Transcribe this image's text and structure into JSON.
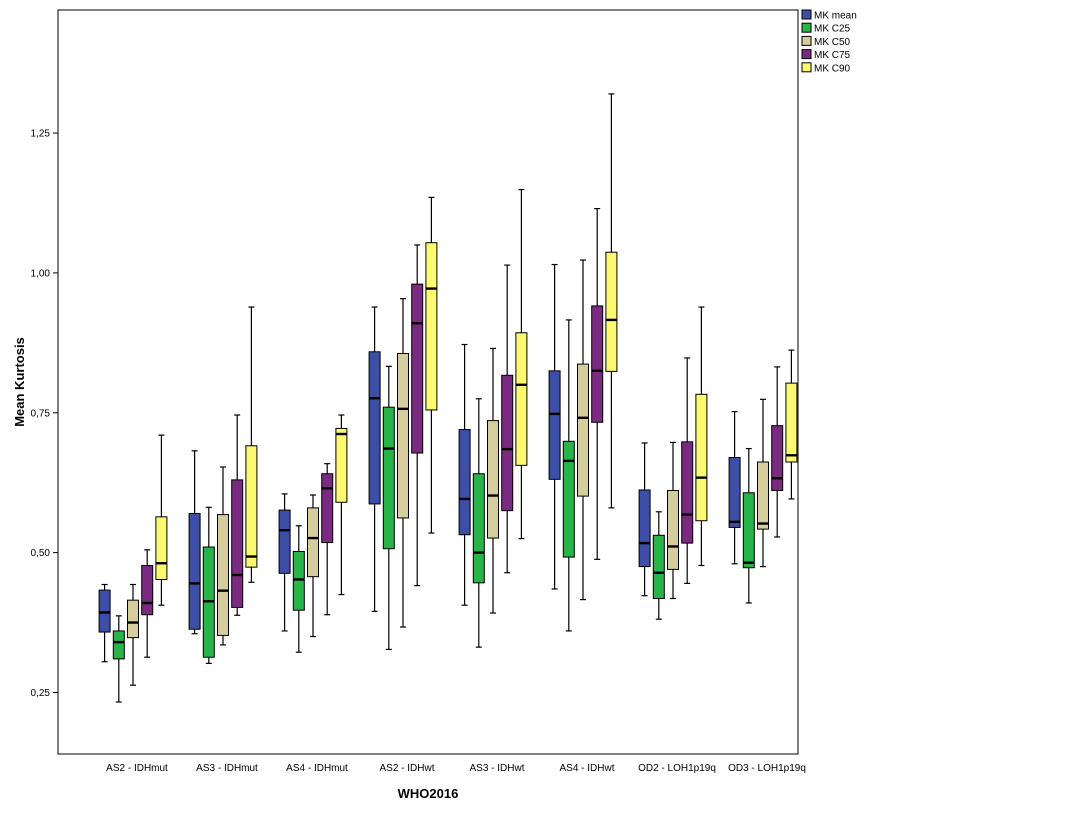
{
  "chart_data": {
    "type": "boxplot",
    "xlabel": "WHO2016",
    "ylabel": "Mean Kurtosis",
    "ylim": [
      0.14,
      1.47
    ],
    "yticks": [
      0.25,
      0.5,
      0.75,
      1.0,
      1.25
    ],
    "ytick_labels": [
      "0,25",
      "0,50",
      "0,75",
      "1,00",
      "1,25"
    ],
    "legend_position": "top-right",
    "categories": [
      "AS2 - IDHmut",
      "AS3 - IDHmut",
      "AS4 - IDHmut",
      "AS2 - IDHwt",
      "AS3 - IDHwt",
      "AS4 - IDHwt",
      "OD2 - LOH1p19q",
      "OD3 - LOH1p19q"
    ],
    "series": [
      {
        "name": "MK mean",
        "color": "#3d4ea6",
        "boxes": [
          {
            "min": 0.305,
            "q1": 0.358,
            "median": 0.393,
            "q3": 0.433,
            "max": 0.443
          },
          {
            "min": 0.355,
            "q1": 0.363,
            "median": 0.445,
            "q3": 0.57,
            "max": 0.682
          },
          {
            "min": 0.36,
            "q1": 0.463,
            "median": 0.54,
            "q3": 0.576,
            "max": 0.605
          },
          {
            "min": 0.395,
            "q1": 0.587,
            "median": 0.776,
            "q3": 0.859,
            "max": 0.939
          },
          {
            "min": 0.406,
            "q1": 0.532,
            "median": 0.596,
            "q3": 0.72,
            "max": 0.872
          },
          {
            "min": 0.435,
            "q1": 0.631,
            "median": 0.748,
            "q3": 0.825,
            "max": 1.015
          },
          {
            "min": 0.423,
            "q1": 0.475,
            "median": 0.517,
            "q3": 0.612,
            "max": 0.696
          },
          {
            "min": 0.48,
            "q1": 0.545,
            "median": 0.555,
            "q3": 0.67,
            "max": 0.752
          }
        ]
      },
      {
        "name": "MK C25",
        "color": "#28b448",
        "boxes": [
          {
            "min": 0.233,
            "q1": 0.31,
            "median": 0.34,
            "q3": 0.36,
            "max": 0.387
          },
          {
            "min": 0.302,
            "q1": 0.313,
            "median": 0.413,
            "q3": 0.51,
            "max": 0.581
          },
          {
            "min": 0.322,
            "q1": 0.397,
            "median": 0.452,
            "q3": 0.502,
            "max": 0.548
          },
          {
            "min": 0.327,
            "q1": 0.507,
            "median": 0.686,
            "q3": 0.76,
            "max": 0.833
          },
          {
            "min": 0.331,
            "q1": 0.446,
            "median": 0.5,
            "q3": 0.641,
            "max": 0.775
          },
          {
            "min": 0.36,
            "q1": 0.492,
            "median": 0.664,
            "q3": 0.699,
            "max": 0.916
          },
          {
            "min": 0.381,
            "q1": 0.418,
            "median": 0.464,
            "q3": 0.531,
            "max": 0.573
          },
          {
            "min": 0.41,
            "q1": 0.473,
            "median": 0.482,
            "q3": 0.607,
            "max": 0.686
          }
        ]
      },
      {
        "name": "MK C50",
        "color": "#d6cd9d",
        "boxes": [
          {
            "min": 0.263,
            "q1": 0.348,
            "median": 0.375,
            "q3": 0.415,
            "max": 0.443
          },
          {
            "min": 0.335,
            "q1": 0.352,
            "median": 0.432,
            "q3": 0.568,
            "max": 0.653
          },
          {
            "min": 0.35,
            "q1": 0.457,
            "median": 0.526,
            "q3": 0.58,
            "max": 0.603
          },
          {
            "min": 0.367,
            "q1": 0.562,
            "median": 0.757,
            "q3": 0.856,
            "max": 0.954
          },
          {
            "min": 0.392,
            "q1": 0.526,
            "median": 0.602,
            "q3": 0.736,
            "max": 0.865
          },
          {
            "min": 0.416,
            "q1": 0.601,
            "median": 0.741,
            "q3": 0.837,
            "max": 1.023
          },
          {
            "min": 0.418,
            "q1": 0.47,
            "median": 0.511,
            "q3": 0.611,
            "max": 0.697
          },
          {
            "min": 0.475,
            "q1": 0.542,
            "median": 0.552,
            "q3": 0.662,
            "max": 0.774
          }
        ]
      },
      {
        "name": "MK C75",
        "color": "#7a2a80",
        "boxes": [
          {
            "min": 0.313,
            "q1": 0.389,
            "median": 0.41,
            "q3": 0.477,
            "max": 0.505
          },
          {
            "min": 0.388,
            "q1": 0.402,
            "median": 0.46,
            "q3": 0.63,
            "max": 0.746
          },
          {
            "min": 0.389,
            "q1": 0.518,
            "median": 0.615,
            "q3": 0.641,
            "max": 0.659
          },
          {
            "min": 0.441,
            "q1": 0.678,
            "median": 0.91,
            "q3": 0.98,
            "max": 1.05
          },
          {
            "min": 0.464,
            "q1": 0.575,
            "median": 0.685,
            "q3": 0.817,
            "max": 1.014
          },
          {
            "min": 0.488,
            "q1": 0.733,
            "median": 0.825,
            "q3": 0.941,
            "max": 1.115
          },
          {
            "min": 0.445,
            "q1": 0.517,
            "median": 0.568,
            "q3": 0.698,
            "max": 0.848
          },
          {
            "min": 0.528,
            "q1": 0.611,
            "median": 0.633,
            "q3": 0.727,
            "max": 0.832
          }
        ]
      },
      {
        "name": "MK C90",
        "color": "#fcf870",
        "boxes": [
          {
            "min": 0.406,
            "q1": 0.452,
            "median": 0.481,
            "q3": 0.564,
            "max": 0.71
          },
          {
            "min": 0.447,
            "q1": 0.474,
            "median": 0.493,
            "q3": 0.691,
            "max": 0.939
          },
          {
            "min": 0.425,
            "q1": 0.59,
            "median": 0.712,
            "q3": 0.722,
            "max": 0.746
          },
          {
            "min": 0.535,
            "q1": 0.755,
            "median": 0.972,
            "q3": 1.054,
            "max": 1.135
          },
          {
            "min": 0.525,
            "q1": 0.656,
            "median": 0.8,
            "q3": 0.893,
            "max": 1.149
          },
          {
            "min": 0.58,
            "q1": 0.824,
            "median": 0.916,
            "q3": 1.037,
            "max": 1.32
          },
          {
            "min": 0.477,
            "q1": 0.557,
            "median": 0.634,
            "q3": 0.783,
            "max": 0.939
          },
          {
            "min": 0.596,
            "q1": 0.662,
            "median": 0.674,
            "q3": 0.803,
            "max": 0.862
          }
        ]
      }
    ]
  }
}
